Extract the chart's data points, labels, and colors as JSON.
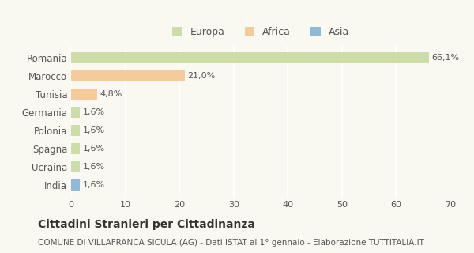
{
  "categories": [
    "Romania",
    "Marocco",
    "Tunisia",
    "Germania",
    "Polonia",
    "Spagna",
    "Ucraina",
    "India"
  ],
  "values": [
    66.1,
    21.0,
    4.8,
    1.6,
    1.6,
    1.6,
    1.6,
    1.6
  ],
  "labels": [
    "66,1%",
    "21,0%",
    "4,8%",
    "1,6%",
    "1,6%",
    "1,6%",
    "1,6%",
    "1,6%"
  ],
  "colors": [
    "#c5d89d",
    "#f5c48a",
    "#f5c48a",
    "#c5d89d",
    "#c5d89d",
    "#c5d89d",
    "#c5d89d",
    "#7bafd4"
  ],
  "legend": [
    {
      "label": "Europa",
      "color": "#c5d89d"
    },
    {
      "label": "Africa",
      "color": "#f5c48a"
    },
    {
      "label": "Asia",
      "color": "#7bafd4"
    }
  ],
  "xlim": [
    0,
    70
  ],
  "xticks": [
    0,
    10,
    20,
    30,
    40,
    50,
    60,
    70
  ],
  "title": "Cittadini Stranieri per Cittadinanza",
  "subtitle": "COMUNE DI VILLAFRANCA SICULA (AG) - Dati ISTAT al 1° gennaio - Elaborazione TUTTITALIA.IT",
  "background_color": "#f9f9f2",
  "grid_color": "#ffffff",
  "bar_alpha": 0.85
}
